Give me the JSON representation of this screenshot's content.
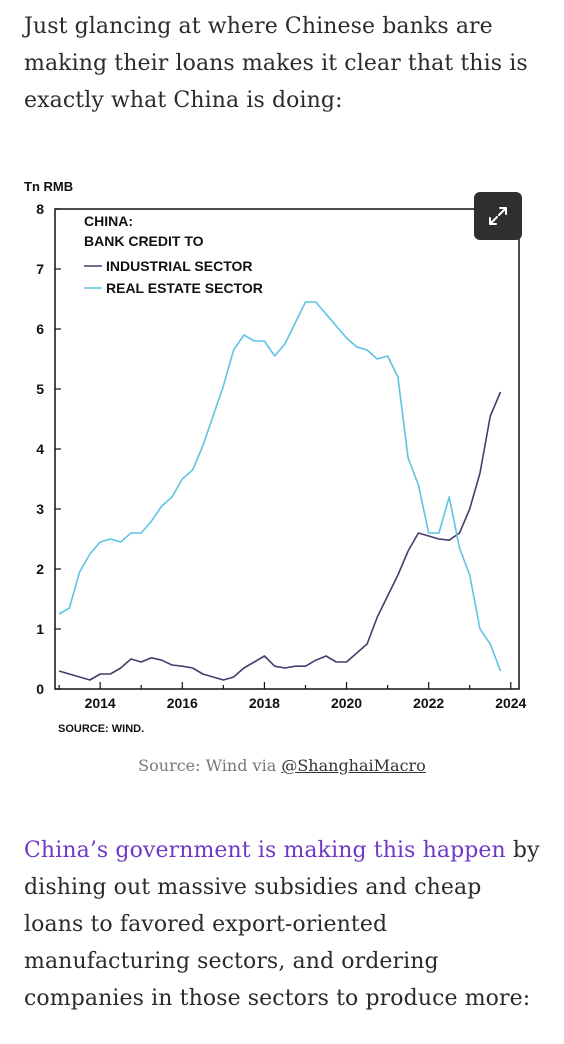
{
  "intro_text": "Just glancing at where Chinese banks are making their loans makes it clear that this is exactly what China is doing:",
  "caption": {
    "prefix": "Source: Wind via ",
    "link": "@ShanghaiMacro"
  },
  "body": {
    "link_text": "China’s government is making this happen",
    "rest_text": " by dishing out massive subsidies and cheap loans to favored export-oriented manufacturing sectors, and ordering companies in those sectors to produce more:"
  },
  "expand_button": {
    "icon": "expand-icon"
  },
  "chart_data": {
    "type": "line",
    "legend_title_1": "CHINA:",
    "legend_title_2": "BANK CREDIT TO",
    "ylabel": "Tn RMB",
    "source": "SOURCE: WIND.",
    "ylim": [
      0,
      8
    ],
    "xlim": [
      2012.9,
      2024.2
    ],
    "yticks": [
      0,
      1,
      2,
      3,
      4,
      5,
      6,
      7,
      8
    ],
    "xticks": [
      2014,
      2016,
      2018,
      2020,
      2022,
      2024
    ],
    "legend_placement": "top-left",
    "grid": false,
    "series": [
      {
        "name": "INDUSTRIAL SECTOR",
        "color": "#4a3b6b",
        "x": [
          2013.0,
          2013.5,
          2013.75,
          2014.0,
          2014.25,
          2014.5,
          2014.75,
          2015.0,
          2015.25,
          2015.5,
          2015.75,
          2016.0,
          2016.25,
          2016.5,
          2016.75,
          2017.0,
          2017.25,
          2017.5,
          2017.75,
          2018.0,
          2018.25,
          2018.5,
          2018.75,
          2019.0,
          2019.25,
          2019.5,
          2019.75,
          2020.0,
          2020.25,
          2020.5,
          2020.75,
          2021.0,
          2021.25,
          2021.5,
          2021.75,
          2022.0,
          2022.25,
          2022.5,
          2022.75,
          2023.0,
          2023.25,
          2023.5,
          2023.75
        ],
        "values": [
          0.3,
          0.2,
          0.15,
          0.25,
          0.25,
          0.35,
          0.5,
          0.45,
          0.52,
          0.48,
          0.4,
          0.38,
          0.35,
          0.25,
          0.2,
          0.15,
          0.2,
          0.35,
          0.45,
          0.55,
          0.38,
          0.35,
          0.38,
          0.38,
          0.48,
          0.55,
          0.45,
          0.45,
          0.6,
          0.75,
          1.2,
          1.55,
          1.9,
          2.3,
          2.6,
          2.55,
          2.5,
          2.48,
          2.6,
          3.0,
          3.6,
          4.55,
          4.95
        ]
      },
      {
        "name": "REAL ESTATE SECTOR",
        "color": "#5fc3e4",
        "x": [
          2013.0,
          2013.25,
          2013.5,
          2013.75,
          2014.0,
          2014.25,
          2014.5,
          2014.75,
          2015.0,
          2015.25,
          2015.5,
          2015.75,
          2016.0,
          2016.25,
          2016.5,
          2016.75,
          2017.0,
          2017.25,
          2017.5,
          2017.75,
          2018.0,
          2018.25,
          2018.5,
          2018.75,
          2019.0,
          2019.25,
          2019.5,
          2019.75,
          2020.0,
          2020.25,
          2020.5,
          2020.75,
          2021.0,
          2021.25,
          2021.5,
          2021.75,
          2022.0,
          2022.25,
          2022.5,
          2022.75,
          2023.0,
          2023.25,
          2023.5,
          2023.75
        ],
        "values": [
          1.25,
          1.35,
          1.95,
          2.25,
          2.45,
          2.5,
          2.45,
          2.6,
          2.6,
          2.8,
          3.05,
          3.2,
          3.5,
          3.65,
          4.05,
          4.55,
          5.05,
          5.65,
          5.9,
          5.8,
          5.8,
          5.55,
          5.75,
          6.1,
          6.45,
          6.45,
          6.25,
          6.05,
          5.85,
          5.7,
          5.65,
          5.5,
          5.55,
          5.2,
          3.85,
          3.4,
          2.6,
          2.6,
          3.2,
          2.35,
          1.9,
          1.0,
          0.75,
          0.3
        ]
      }
    ]
  }
}
